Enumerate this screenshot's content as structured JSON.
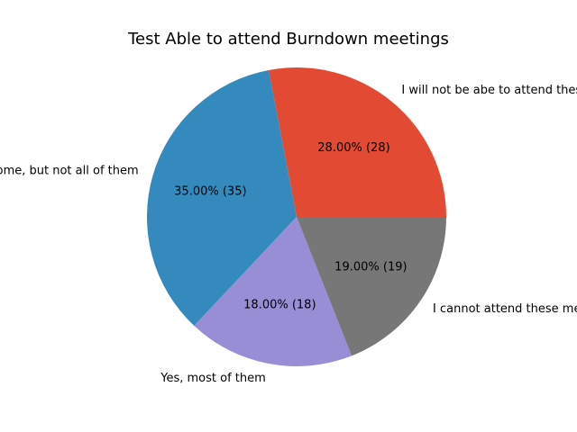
{
  "chart_data": {
    "type": "pie",
    "title": "Test Able to attend Burndown meetings",
    "slices": [
      {
        "label": "I will not be abe to attend these meetings",
        "value": 28,
        "percent_label": "28.00%  (28)",
        "color": "#e24a33"
      },
      {
        "label": "Some, but not all of them",
        "value": 35,
        "percent_label": "35.00%  (35)",
        "color": "#348abd"
      },
      {
        "label": "Yes, most of them",
        "value": 18,
        "percent_label": "18.00%  (18)",
        "color": "#988ed5"
      },
      {
        "label": "I cannot attend these meetings",
        "value": 19,
        "percent_label": "19.00%  (19)",
        "color": "#777777"
      }
    ],
    "start_angle_deg": 0,
    "direction": "counterclockwise",
    "legend": "none"
  }
}
